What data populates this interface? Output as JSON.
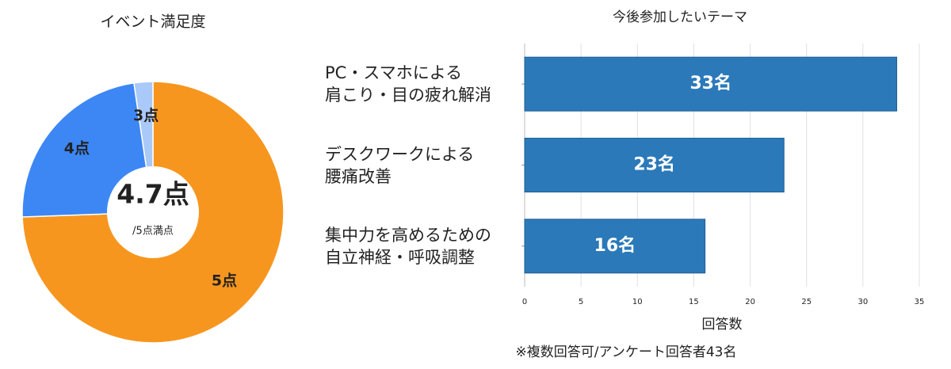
{
  "chart_data": [
    {
      "type": "pie",
      "title": "イベント満足度",
      "categories": [
        "5点",
        "4点",
        "3点"
      ],
      "values": [
        32,
        10,
        1
      ],
      "colors": [
        "#f7961e",
        "#3d87f5",
        "#a9c9f9"
      ],
      "center_label": "4.7点",
      "center_sublabel": "/5点満点"
    },
    {
      "type": "bar",
      "orientation": "horizontal",
      "title": "今後参加したいテーマ",
      "categories": [
        "PC・スマホによる\n肩こり・目の疲れ解消",
        "デスクワークによる\n腰痛改善",
        "集中力を高めるための\n自立神経・呼吸調整"
      ],
      "values": [
        33,
        23,
        16
      ],
      "value_labels": [
        "33名",
        "23名",
        "16名"
      ],
      "color": "#2b79b9",
      "xlim": [
        0,
        35
      ],
      "xticks": [
        0,
        5,
        10,
        15,
        20,
        25,
        30,
        35
      ],
      "xlabel": "回答数",
      "grid": true,
      "note": "※複数回答可/アンケート回答者43名"
    }
  ]
}
